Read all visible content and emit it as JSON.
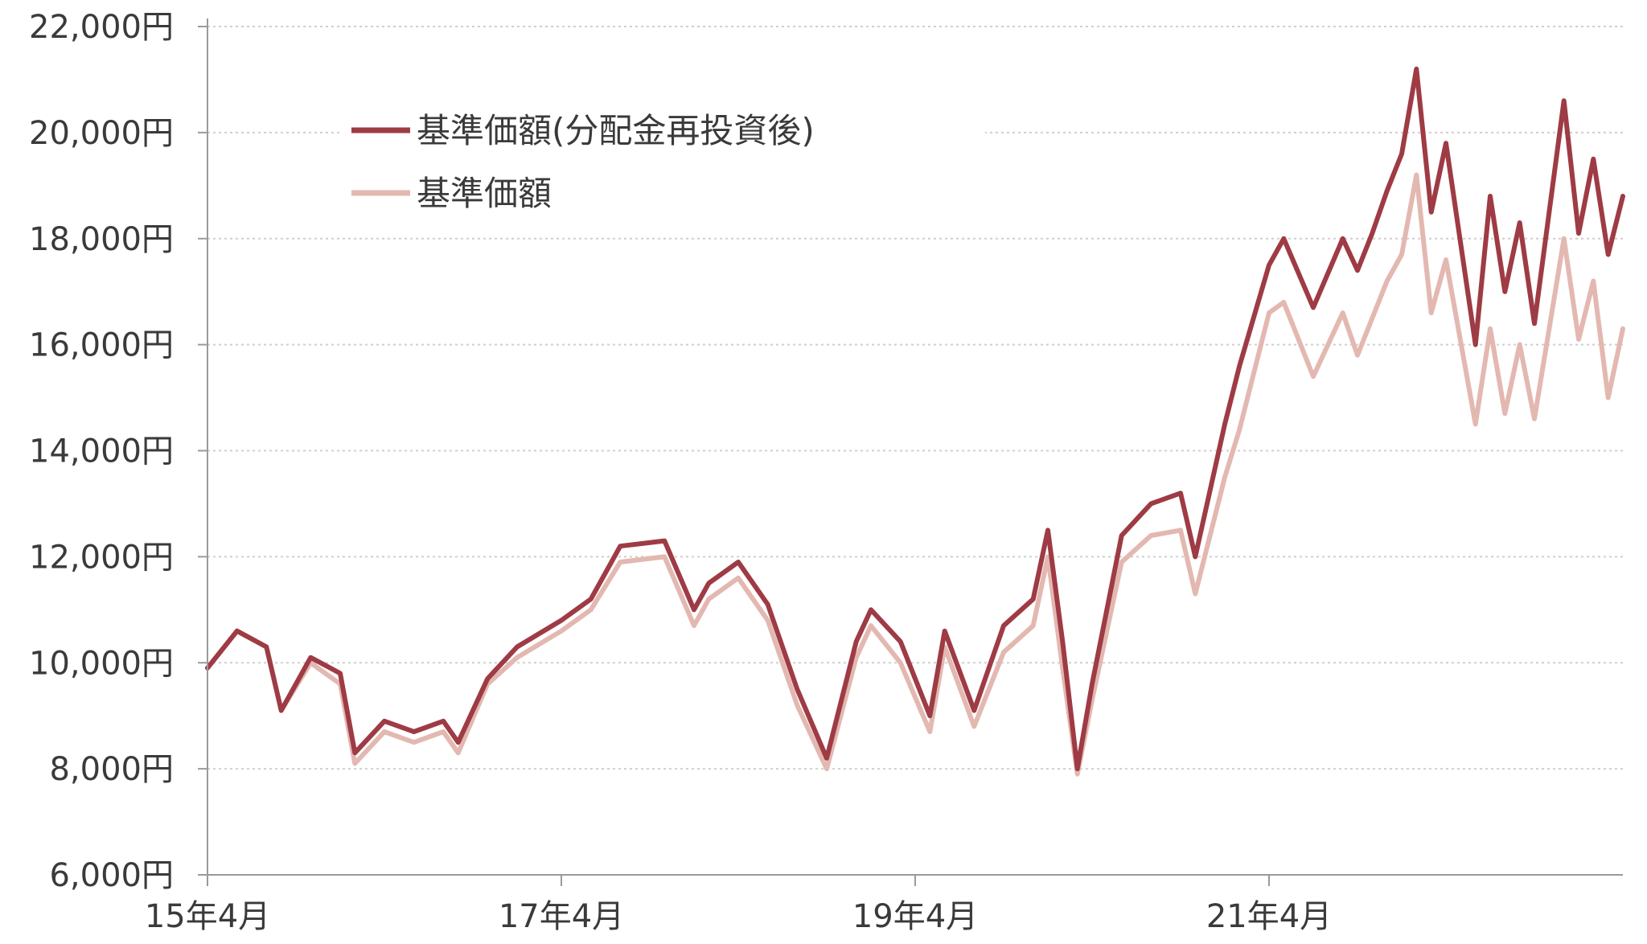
{
  "chart_data": {
    "type": "line",
    "title": "",
    "xlabel": "",
    "ylabel": "",
    "ylim": [
      6000,
      22000
    ],
    "y_ticks": [
      6000,
      8000,
      10000,
      12000,
      14000,
      16000,
      18000,
      20000,
      22000
    ],
    "y_tick_labels": [
      "6,000円",
      "8,000円",
      "10,000円",
      "12,000円",
      "14,000円",
      "16,000円",
      "18,000円",
      "20,000円",
      "22,000円"
    ],
    "x_range": [
      "2015-04",
      "2023-04"
    ],
    "x_ticks": [
      "2015-04",
      "2017-04",
      "2019-04",
      "2021-04"
    ],
    "x_tick_labels": [
      "15年4月",
      "17年4月",
      "19年4月",
      "21年4月"
    ],
    "grid": "horizontal dotted",
    "legend_position": "top-left",
    "colors": {
      "reinvested": "#9e3b44",
      "nav": "#e3b8b1",
      "axis": "#9a9a9a",
      "grid": "#cfcfcf"
    },
    "series": [
      {
        "name": "基準価額(分配金再投資後)",
        "x": [
          "2015-04",
          "2015-06",
          "2015-08",
          "2015-09",
          "2015-11",
          "2016-01",
          "2016-02",
          "2016-04",
          "2016-06",
          "2016-08",
          "2016-09",
          "2016-11",
          "2017-01",
          "2017-04",
          "2017-06",
          "2017-08",
          "2017-11",
          "2018-01",
          "2018-02",
          "2018-04",
          "2018-06",
          "2018-08",
          "2018-10",
          "2018-12",
          "2019-01",
          "2019-03",
          "2019-05",
          "2019-06",
          "2019-08",
          "2019-10",
          "2019-12",
          "2020-01",
          "2020-02",
          "2020-03",
          "2020-04",
          "2020-06",
          "2020-08",
          "2020-10",
          "2020-11",
          "2021-01",
          "2021-02",
          "2021-04",
          "2021-05",
          "2021-07",
          "2021-09",
          "2021-10",
          "2021-11",
          "2021-12",
          "2022-01",
          "2022-02",
          "2022-03",
          "2022-04",
          "2022-06",
          "2022-07",
          "2022-08",
          "2022-09",
          "2022-10",
          "2022-12",
          "2023-01",
          "2023-02",
          "2023-03",
          "2023-04"
        ],
        "values": [
          9900,
          10600,
          10300,
          9100,
          10100,
          9800,
          8300,
          8900,
          8700,
          8900,
          8500,
          9700,
          10300,
          10800,
          11200,
          12200,
          12300,
          11000,
          11500,
          11900,
          11100,
          9500,
          8200,
          10400,
          11000,
          10400,
          9000,
          10600,
          9100,
          10700,
          11200,
          12500,
          10400,
          8000,
          9600,
          12400,
          13000,
          13200,
          12000,
          14500,
          15600,
          17500,
          18000,
          16700,
          18000,
          17400,
          18100,
          18900,
          19600,
          21200,
          18500,
          19800,
          16000,
          18800,
          17000,
          18300,
          16400,
          20600,
          18100,
          19500,
          17700,
          18800
        ]
      },
      {
        "name": "基準価額",
        "x": [
          "2015-04",
          "2015-06",
          "2015-08",
          "2015-09",
          "2015-11",
          "2016-01",
          "2016-02",
          "2016-04",
          "2016-06",
          "2016-08",
          "2016-09",
          "2016-11",
          "2017-01",
          "2017-04",
          "2017-06",
          "2017-08",
          "2017-11",
          "2018-01",
          "2018-02",
          "2018-04",
          "2018-06",
          "2018-08",
          "2018-10",
          "2018-12",
          "2019-01",
          "2019-03",
          "2019-05",
          "2019-06",
          "2019-08",
          "2019-10",
          "2019-12",
          "2020-01",
          "2020-02",
          "2020-03",
          "2020-04",
          "2020-06",
          "2020-08",
          "2020-10",
          "2020-11",
          "2021-01",
          "2021-02",
          "2021-04",
          "2021-05",
          "2021-07",
          "2021-09",
          "2021-10",
          "2021-11",
          "2021-12",
          "2022-01",
          "2022-02",
          "2022-03",
          "2022-04",
          "2022-06",
          "2022-07",
          "2022-08",
          "2022-09",
          "2022-10",
          "2022-12",
          "2023-01",
          "2023-02",
          "2023-03",
          "2023-04"
        ],
        "values": [
          9900,
          10600,
          10300,
          9100,
          10000,
          9600,
          8100,
          8700,
          8500,
          8700,
          8300,
          9600,
          10100,
          10600,
          11000,
          11900,
          12000,
          10700,
          11200,
          11600,
          10800,
          9200,
          8000,
          10100,
          10700,
          10000,
          8700,
          10300,
          8800,
          10200,
          10700,
          12000,
          9900,
          7900,
          9300,
          11900,
          12400,
          12500,
          11300,
          13500,
          14400,
          16600,
          16800,
          15400,
          16600,
          15800,
          16500,
          17200,
          17700,
          19200,
          16600,
          17600,
          14500,
          16300,
          14700,
          16000,
          14600,
          18000,
          16100,
          17200,
          15000,
          16300
        ]
      }
    ]
  }
}
